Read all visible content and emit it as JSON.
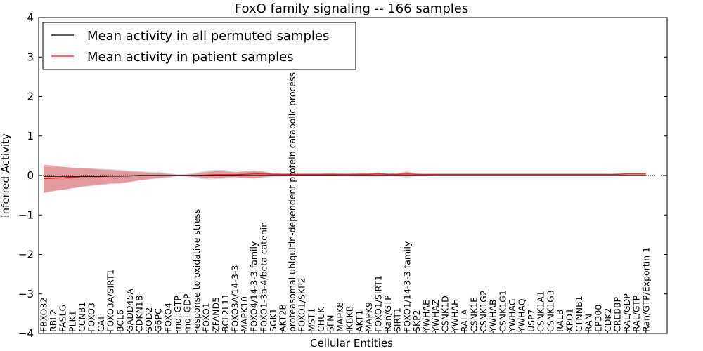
{
  "chart_data": {
    "type": "area",
    "title": "FoxO family signaling -- 166 samples",
    "xlabel": "Cellular Entities",
    "ylabel": "Inferred Activity",
    "ylim": [
      -4,
      4
    ],
    "yticks": [
      "−4",
      "−3",
      "−2",
      "−1",
      "0",
      "1",
      "2",
      "3",
      "4"
    ],
    "legend_position": "top-left",
    "categories": [
      "FBXO32",
      "RBL2",
      "FASLG",
      "PLK1",
      "CCNB1",
      "FOXO3",
      "CAT",
      "FOXO3A/SIRT1",
      "BCL6",
      "GADD45A",
      "CDKN1B",
      "SOD2",
      "G6PC",
      "FOXO4",
      "mol:GTP",
      "mol:GDP",
      "response to oxidative stress",
      "FOXO1",
      "ZFAND5",
      "BCL2L11",
      "FOXO3A/14-3-3",
      "MAPK10",
      "FOXO4/14-3-3 family",
      "FOXO1-3a-4/beta catenin",
      "SGK1",
      "AKT2B",
      "proteasomal ubiquitin-dependent protein catabolic process",
      "FOXO1/SKP2",
      "MST1",
      "CHUK",
      "SFN",
      "MAPK8",
      "IKBKB",
      "AKT1",
      "MAPK9",
      "FOXO1/SIRT1",
      "Ran/GTP",
      "SIRT1",
      "FOXO1/14-3-3 family",
      "SKP2",
      "YWHAE",
      "YWHAZ",
      "CSNK1D",
      "YWHAH",
      "RALA",
      "CSNK1E",
      "CSNK1G2",
      "YWHAB",
      "CSNK1G1",
      "YWHAG",
      "YWHAQ",
      "USP7",
      "CSNK1A1",
      "CSNK1G3",
      "RALB",
      "XPO1",
      "CTNNB1",
      "RAN",
      "EP300",
      "CDK2",
      "CREBBP",
      "RAL/GDP",
      "RAL/GTP",
      "Ran/GTP/Exportin 1"
    ],
    "series": [
      {
        "name": "Mean activity in all permuted samples",
        "color": "#000000",
        "values": [
          -0.02,
          -0.02,
          -0.02,
          -0.02,
          -0.02,
          -0.02,
          -0.02,
          -0.01,
          -0.01,
          -0.01,
          0,
          0,
          0,
          0,
          0,
          0,
          0,
          0,
          0,
          0,
          0,
          0,
          0,
          0,
          0,
          0,
          0,
          0,
          0,
          0,
          0,
          0,
          0,
          0,
          0,
          0,
          0,
          0,
          0,
          0,
          0,
          0,
          0,
          0,
          0,
          0,
          0,
          0,
          0,
          0,
          0,
          0,
          0,
          0,
          0,
          0,
          0,
          0,
          0,
          0,
          0,
          0,
          0,
          0
        ],
        "band_low": [
          -0.42,
          -0.38,
          -0.36,
          -0.33,
          -0.3,
          -0.27,
          -0.24,
          -0.22,
          -0.21,
          -0.17,
          -0.13,
          -0.1,
          -0.08,
          -0.06,
          -0.02,
          -0.03,
          -0.07,
          -0.1,
          -0.09,
          -0.08,
          -0.06,
          -0.06,
          -0.06,
          -0.06,
          -0.04,
          -0.03,
          -0.02,
          -0.02,
          -0.02,
          -0.02,
          -0.02,
          -0.02,
          -0.02,
          -0.03,
          -0.03,
          -0.04,
          -0.02,
          -0.03,
          -0.06,
          -0.02,
          -0.02,
          -0.01,
          -0.01,
          -0.01,
          -0.01,
          -0.01,
          -0.01,
          -0.01,
          -0.01,
          -0.01,
          -0.01,
          -0.01,
          -0.01,
          -0.01,
          -0.01,
          -0.01,
          -0.01,
          -0.01,
          -0.01,
          -0.01,
          -0.01,
          -0.01,
          -0.01,
          -0.01
        ],
        "band_high": [
          0.22,
          0.21,
          0.21,
          0.2,
          0.19,
          0.18,
          0.17,
          0.16,
          0.15,
          0.13,
          0.11,
          0.1,
          0.09,
          0.07,
          0.03,
          0.04,
          0.08,
          0.13,
          0.15,
          0.14,
          0.09,
          0.08,
          0.1,
          0.09,
          0.05,
          0.04,
          0.03,
          0.03,
          0.03,
          0.03,
          0.03,
          0.03,
          0.03,
          0.05,
          0.05,
          0.07,
          0.04,
          0.04,
          0.08,
          0.03,
          0.02,
          0.02,
          0.02,
          0.02,
          0.02,
          0.02,
          0.02,
          0.02,
          0.02,
          0.02,
          0.02,
          0.02,
          0.02,
          0.02,
          0.02,
          0.02,
          0.02,
          0.02,
          0.02,
          0.02,
          0.02,
          0.02,
          0.02,
          0.02
        ]
      },
      {
        "name": "Mean activity in patient samples",
        "color": "#ff0000",
        "values": [
          -0.08,
          -0.07,
          -0.06,
          -0.04,
          -0.03,
          -0.03,
          -0.03,
          -0.02,
          -0.02,
          -0.01,
          0,
          0,
          0,
          0,
          0,
          0,
          0,
          0.01,
          0.02,
          0.02,
          0.02,
          0.03,
          0.04,
          0.04,
          0.03,
          0.03,
          0.03,
          0.03,
          0.03,
          0.03,
          0.03,
          0.03,
          0.03,
          0.03,
          0.03,
          0.04,
          0.03,
          0.03,
          0.04,
          0.03,
          0.03,
          0.03,
          0.03,
          0.03,
          0.03,
          0.03,
          0.03,
          0.03,
          0.03,
          0.03,
          0.03,
          0.03,
          0.03,
          0.03,
          0.03,
          0.03,
          0.03,
          0.03,
          0.03,
          0.03,
          0.03,
          0.04,
          0.04,
          0.04
        ],
        "band_low": [
          -0.45,
          -0.4,
          -0.36,
          -0.32,
          -0.28,
          -0.25,
          -0.23,
          -0.2,
          -0.19,
          -0.16,
          -0.12,
          -0.09,
          -0.06,
          -0.04,
          -0.01,
          -0.02,
          -0.04,
          -0.06,
          -0.07,
          -0.05,
          -0.04,
          -0.06,
          -0.08,
          -0.04,
          -0.01,
          0,
          0,
          0,
          0,
          0,
          0,
          0.01,
          0.01,
          0,
          0.01,
          0,
          0.01,
          0.01,
          0,
          0.01,
          0.01,
          0.02,
          0.02,
          0.02,
          0.02,
          0.02,
          0.02,
          0.02,
          0.02,
          0.02,
          0.02,
          0.02,
          0.02,
          0.02,
          0.02,
          0.02,
          0.02,
          0.02,
          0.02,
          0.02,
          0.02,
          0.02,
          0.02,
          0.02
        ],
        "band_high": [
          0.28,
          0.25,
          0.22,
          0.2,
          0.18,
          0.17,
          0.15,
          0.14,
          0.12,
          0.1,
          0.09,
          0.07,
          0.06,
          0.04,
          0.02,
          0.02,
          0.05,
          0.09,
          0.11,
          0.1,
          0.08,
          0.11,
          0.13,
          0.1,
          0.06,
          0.05,
          0.05,
          0.05,
          0.05,
          0.05,
          0.06,
          0.05,
          0.05,
          0.06,
          0.06,
          0.08,
          0.05,
          0.06,
          0.1,
          0.05,
          0.04,
          0.04,
          0.04,
          0.04,
          0.04,
          0.04,
          0.04,
          0.04,
          0.04,
          0.04,
          0.04,
          0.04,
          0.04,
          0.04,
          0.04,
          0.04,
          0.04,
          0.04,
          0.04,
          0.04,
          0.05,
          0.06,
          0.06,
          0.06
        ]
      }
    ]
  }
}
